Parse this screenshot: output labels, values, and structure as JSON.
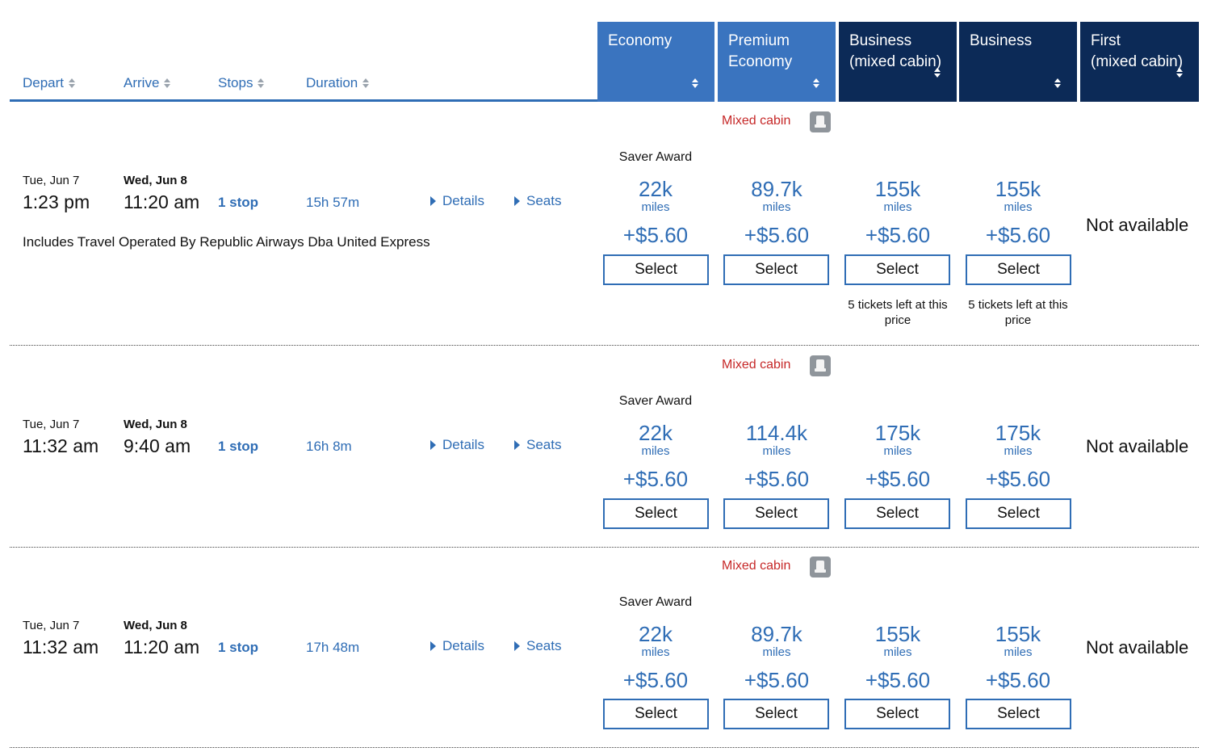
{
  "columns": {
    "depart": "Depart",
    "arrive": "Arrive",
    "stops": "Stops",
    "duration": "Duration"
  },
  "cabins": [
    {
      "label": "Economy",
      "color": "#3a74bf"
    },
    {
      "label": "Premium\nEconomy",
      "color": "#3a74bf"
    },
    {
      "label": "Business\n(mixed cabin)",
      "color": "#0c2a57"
    },
    {
      "label": "Business",
      "color": "#0c2a57"
    },
    {
      "label": "First\n(mixed cabin)",
      "color": "#0c2a57"
    }
  ],
  "flights": [
    {
      "mixed_cabin": "Mixed cabin",
      "saver_award": "Saver Award",
      "depart_date": "Tue, Jun 7",
      "depart_time": "1:23 pm",
      "arrive_date": "Wed, Jun 8",
      "arrive_time": "11:20 am",
      "stops": "1 stop",
      "duration": "15h 57m",
      "details": "Details",
      "seats": "Seats",
      "operated_by": "Includes Travel Operated By Republic Airways Dba United Express",
      "prices": [
        {
          "miles": "22k",
          "unit": "miles",
          "fee": "+$5.60",
          "select": "Select"
        },
        {
          "miles": "89.7k",
          "unit": "miles",
          "fee": "+$5.60",
          "select": "Select"
        },
        {
          "miles": "155k",
          "unit": "miles",
          "fee": "+$5.60",
          "select": "Select",
          "tickets": "5 tickets left at this price"
        },
        {
          "miles": "155k",
          "unit": "miles",
          "fee": "+$5.60",
          "select": "Select",
          "tickets": "5 tickets left at this price"
        }
      ],
      "first": "Not available"
    },
    {
      "mixed_cabin": "Mixed cabin",
      "saver_award": "Saver Award",
      "depart_date": "Tue, Jun 7",
      "depart_time": "11:32 am",
      "arrive_date": "Wed, Jun 8",
      "arrive_time": "9:40 am",
      "stops": "1 stop",
      "duration": "16h 8m",
      "details": "Details",
      "seats": "Seats",
      "prices": [
        {
          "miles": "22k",
          "unit": "miles",
          "fee": "+$5.60",
          "select": "Select"
        },
        {
          "miles": "114.4k",
          "unit": "miles",
          "fee": "+$5.60",
          "select": "Select"
        },
        {
          "miles": "175k",
          "unit": "miles",
          "fee": "+$5.60",
          "select": "Select"
        },
        {
          "miles": "175k",
          "unit": "miles",
          "fee": "+$5.60",
          "select": "Select"
        }
      ],
      "first": "Not available"
    },
    {
      "mixed_cabin": "Mixed cabin",
      "saver_award": "Saver Award",
      "depart_date": "Tue, Jun 7",
      "depart_time": "11:32 am",
      "arrive_date": "Wed, Jun 8",
      "arrive_time": "11:20 am",
      "stops": "1 stop",
      "duration": "17h 48m",
      "details": "Details",
      "seats": "Seats",
      "prices": [
        {
          "miles": "22k",
          "unit": "miles",
          "fee": "+$5.60",
          "select": "Select"
        },
        {
          "miles": "89.7k",
          "unit": "miles",
          "fee": "+$5.60",
          "select": "Select"
        },
        {
          "miles": "155k",
          "unit": "miles",
          "fee": "+$5.60",
          "select": "Select"
        },
        {
          "miles": "155k",
          "unit": "miles",
          "fee": "+$5.60",
          "select": "Select"
        }
      ],
      "first": "Not available"
    }
  ]
}
